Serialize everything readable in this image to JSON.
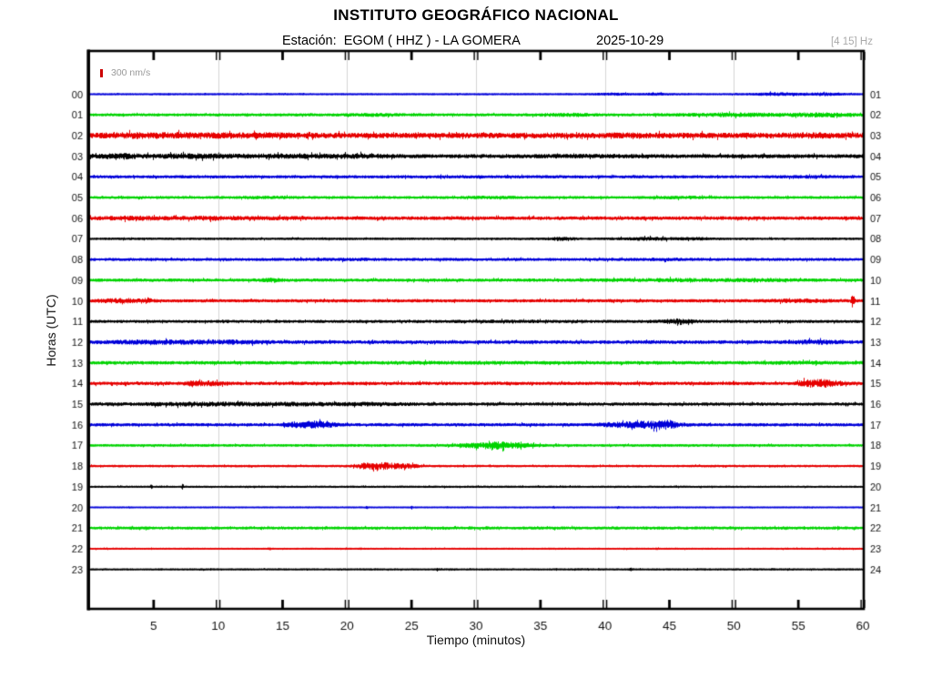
{
  "header": {
    "title": "INSTITUTO GEOGRÁFICO NACIONAL",
    "station_line": "Estación:  EGOM ( HHZ ) - LA GOMERA",
    "date": "2025-10-29",
    "filter": "[4 15] Hz"
  },
  "chart_data": {
    "type": "helicorder-seismogram",
    "title": "INSTITUTO GEOGRÁFICO NACIONAL",
    "station": "EGOM",
    "channel": "HHZ",
    "location": "LA GOMERA",
    "date": "2025-10-29",
    "filter_band_hz": [
      4,
      15
    ],
    "xlabel": "Tiempo (minutos)",
    "ylabel": "Horas (UTC)",
    "scale_label": "300 nm/s",
    "x_range": [
      0,
      60
    ],
    "x_ticks": [
      5,
      10,
      15,
      20,
      25,
      30,
      35,
      40,
      45,
      50,
      55,
      60
    ],
    "x_gridlines": [
      10,
      20,
      30,
      40,
      50
    ],
    "grid_color": "#d4d4d4",
    "color_map": {
      "blue": "#0000d9",
      "green": "#00d300",
      "red": "#e60000",
      "black": "#000000"
    },
    "rows": [
      {
        "hour_utc": "00",
        "hour_right": "01",
        "color": "blue",
        "base_noise": 0.5,
        "events": [
          {
            "min": 40.5,
            "width": 1.5,
            "amp": 0.6
          },
          {
            "min": 44,
            "width": 1.2,
            "amp": 0.6
          },
          {
            "min": 53.5,
            "width": 2.2,
            "amp": 0.9
          },
          {
            "min": 57,
            "width": 1.5,
            "amp": 0.7
          }
        ]
      },
      {
        "hour_utc": "01",
        "hour_right": "02",
        "color": "green",
        "base_noise": 1.0,
        "events": [
          {
            "min": 22,
            "width": 2,
            "amp": 0.5
          },
          {
            "min": 37,
            "width": 2,
            "amp": 0.6
          },
          {
            "min": 50,
            "width": 4,
            "amp": 0.9
          },
          {
            "min": 57,
            "width": 2.5,
            "amp": 1.1
          }
        ]
      },
      {
        "hour_utc": "02",
        "hour_right": "03",
        "color": "red",
        "base_noise": 2.2,
        "events": [
          {
            "min": 5,
            "width": 4,
            "amp": 0.8
          },
          {
            "min": 13,
            "width": 4,
            "amp": 0.6
          },
          {
            "min": 40,
            "width": 8,
            "amp": 0.3
          },
          {
            "min": 56,
            "width": 3,
            "amp": 0.5
          }
        ]
      },
      {
        "hour_utc": "03",
        "hour_right": "04",
        "color": "black",
        "base_noise": 1.5,
        "events": [
          {
            "min": 2.5,
            "width": 1.5,
            "amp": 1.3
          },
          {
            "min": 8,
            "width": 3,
            "amp": 0.9
          },
          {
            "min": 15,
            "width": 4,
            "amp": 0.7
          },
          {
            "min": 21,
            "width": 2.5,
            "amp": 0.7
          },
          {
            "min": 38,
            "width": 5,
            "amp": 0.3
          }
        ]
      },
      {
        "hour_utc": "04",
        "hour_right": "05",
        "color": "blue",
        "base_noise": 1.0,
        "events": [
          {
            "min": 30,
            "width": 10,
            "amp": 0.15
          },
          {
            "min": 56,
            "width": 2.5,
            "amp": 0.4
          }
        ]
      },
      {
        "hour_utc": "05",
        "hour_right": "06",
        "color": "green",
        "base_noise": 0.9,
        "events": [
          {
            "min": 14,
            "width": 2,
            "amp": 0.5
          },
          {
            "min": 31,
            "width": 2,
            "amp": 0.4
          },
          {
            "min": 46,
            "width": 2,
            "amp": 0.5
          }
        ]
      },
      {
        "hour_utc": "06",
        "hour_right": "07",
        "color": "red",
        "base_noise": 1.3,
        "events": [
          {
            "min": 3.5,
            "width": 2.5,
            "amp": 0.9
          },
          {
            "min": 9,
            "width": 2.5,
            "amp": 0.7
          },
          {
            "min": 14,
            "width": 2,
            "amp": 0.4
          }
        ]
      },
      {
        "hour_utc": "07",
        "hour_right": "08",
        "color": "black",
        "base_noise": 0.7,
        "events": [
          {
            "min": 36.5,
            "width": 1,
            "amp": 0.9
          },
          {
            "min": 43.5,
            "width": 2.5,
            "amp": 0.8
          },
          {
            "min": 47,
            "width": 1,
            "amp": 0.6
          }
        ]
      },
      {
        "hour_utc": "08",
        "hour_right": "09",
        "color": "blue",
        "base_noise": 1.0,
        "events": [
          {
            "min": 20,
            "width": 3,
            "amp": 0.3
          },
          {
            "min": 45,
            "width": 3,
            "amp": 0.3
          }
        ]
      },
      {
        "hour_utc": "09",
        "hour_right": "10",
        "color": "green",
        "base_noise": 1.1,
        "events": [
          {
            "min": 14,
            "width": 0.8,
            "amp": 0.9
          },
          {
            "min": 45,
            "width": 5,
            "amp": 0.6
          },
          {
            "min": 52,
            "width": 2.5,
            "amp": 0.6
          }
        ]
      },
      {
        "hour_utc": "10",
        "hour_right": "11",
        "color": "red",
        "base_noise": 1.1,
        "events": [
          {
            "min": 2.5,
            "width": 2,
            "amp": 1.1
          },
          {
            "min": 4.5,
            "width": 0.25,
            "amp": 1.6
          },
          {
            "min": 55,
            "width": 3,
            "amp": 0.6
          },
          {
            "min": 59.2,
            "width": 0.12,
            "amp": 6.5
          }
        ]
      },
      {
        "hour_utc": "11",
        "hour_right": "12",
        "color": "black",
        "base_noise": 1.0,
        "events": [
          {
            "min": 33,
            "width": 4,
            "amp": 0.3
          },
          {
            "min": 45.6,
            "width": 1.2,
            "amp": 1.5
          }
        ]
      },
      {
        "hour_utc": "12",
        "hour_right": "13",
        "color": "blue",
        "base_noise": 1.3,
        "events": [
          {
            "min": 5,
            "width": 4,
            "amp": 0.9
          },
          {
            "min": 11,
            "width": 3,
            "amp": 0.7
          },
          {
            "min": 56.5,
            "width": 2,
            "amp": 0.9
          }
        ]
      },
      {
        "hour_utc": "13",
        "hour_right": "14",
        "color": "green",
        "base_noise": 1.2,
        "events": [
          {
            "min": 28,
            "width": 5,
            "amp": 0.25
          },
          {
            "min": 55,
            "width": 3,
            "amp": 0.35
          }
        ]
      },
      {
        "hour_utc": "14",
        "hour_right": "15",
        "color": "red",
        "base_noise": 1.2,
        "events": [
          {
            "min": 8.8,
            "width": 1.6,
            "amp": 1.5
          },
          {
            "min": 55.6,
            "width": 0.7,
            "amp": 1.4
          },
          {
            "min": 56.9,
            "width": 1.4,
            "amp": 2.6
          }
        ]
      },
      {
        "hour_utc": "15",
        "hour_right": "16",
        "color": "black",
        "base_noise": 1.1,
        "events": [
          {
            "min": 8,
            "width": 4,
            "amp": 0.8
          },
          {
            "min": 15,
            "width": 5,
            "amp": 0.7
          },
          {
            "min": 22,
            "width": 3,
            "amp": 0.5
          }
        ]
      },
      {
        "hour_utc": "16",
        "hour_right": "17",
        "color": "blue",
        "base_noise": 1.1,
        "events": [
          {
            "min": 16,
            "width": 0.8,
            "amp": 1.4
          },
          {
            "min": 17.6,
            "width": 1.3,
            "amp": 2.6
          },
          {
            "min": 41,
            "width": 1.5,
            "amp": 1.1
          },
          {
            "min": 43.7,
            "width": 2,
            "amp": 2.6
          },
          {
            "min": 44.9,
            "width": 0.5,
            "amp": 1.8
          }
        ]
      },
      {
        "hour_utc": "17",
        "hour_right": "18",
        "color": "green",
        "base_noise": 0.8,
        "events": [
          {
            "min": 29.5,
            "width": 1.5,
            "amp": 1.0
          },
          {
            "min": 31.6,
            "width": 1.5,
            "amp": 2.7
          },
          {
            "min": 33.6,
            "width": 1.3,
            "amp": 1.0
          }
        ]
      },
      {
        "hour_utc": "18",
        "hour_right": "19",
        "color": "red",
        "base_noise": 0.7,
        "events": [
          {
            "min": 21.2,
            "width": 0.8,
            "amp": 1.2
          },
          {
            "min": 22.6,
            "width": 1.3,
            "amp": 2.7
          },
          {
            "min": 24.6,
            "width": 1,
            "amp": 1.4
          }
        ]
      },
      {
        "hour_utc": "19",
        "hour_right": "20",
        "color": "black",
        "base_noise": 0.5,
        "events": [
          {
            "min": 4.8,
            "width": 0.08,
            "amp": 2.6
          },
          {
            "min": 7.2,
            "width": 0.08,
            "amp": 2.2
          },
          {
            "min": 30,
            "width": 15,
            "amp": 0.1
          }
        ]
      },
      {
        "hour_utc": "20",
        "hour_right": "21",
        "color": "blue",
        "base_noise": 0.35,
        "events": [
          {
            "min": 21.5,
            "width": 0.08,
            "amp": 0.9
          },
          {
            "min": 25,
            "width": 0.08,
            "amp": 0.8
          },
          {
            "min": 36,
            "width": 0.08,
            "amp": 0.7
          },
          {
            "min": 41,
            "width": 0.08,
            "amp": 0.8
          }
        ]
      },
      {
        "hour_utc": "21",
        "hour_right": "22",
        "color": "green",
        "base_noise": 1.0,
        "events": []
      },
      {
        "hour_utc": "22",
        "hour_right": "23",
        "color": "red",
        "base_noise": 0.45,
        "events": [
          {
            "min": 14,
            "width": 0.08,
            "amp": 0.5
          },
          {
            "min": 21,
            "width": 0.08,
            "amp": 0.5
          },
          {
            "min": 44,
            "width": 0.08,
            "amp": 0.4
          }
        ]
      },
      {
        "hour_utc": "23",
        "hour_right": "24",
        "color": "black",
        "base_noise": 0.5,
        "events": [
          {
            "min": 27,
            "width": 0.12,
            "amp": 0.7
          },
          {
            "min": 42,
            "width": 0.12,
            "amp": 0.7
          },
          {
            "min": 53,
            "width": 0.12,
            "amp": 0.5
          }
        ]
      }
    ]
  }
}
